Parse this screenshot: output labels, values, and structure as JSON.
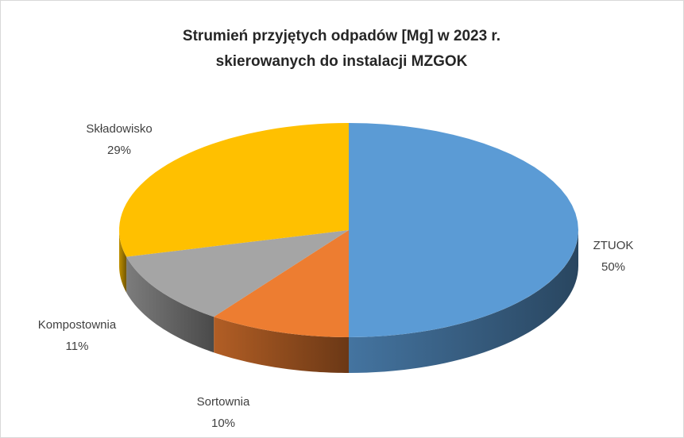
{
  "chart_data": {
    "type": "pie",
    "title": [
      "Strumień przyjętych odpadów [Mg] w 2023 r.",
      "skierowanych do instalacji MZGOK"
    ],
    "categories": [
      "ZTUOK",
      "Sortownia",
      "Kompostownia",
      "Składowisko"
    ],
    "values": [
      50,
      10,
      11,
      29
    ],
    "value_labels": [
      "50%",
      "10%",
      "11%",
      "29%"
    ],
    "colors": [
      "#5b9bd5",
      "#ed7d31",
      "#a5a5a5",
      "#ffc000"
    ]
  }
}
